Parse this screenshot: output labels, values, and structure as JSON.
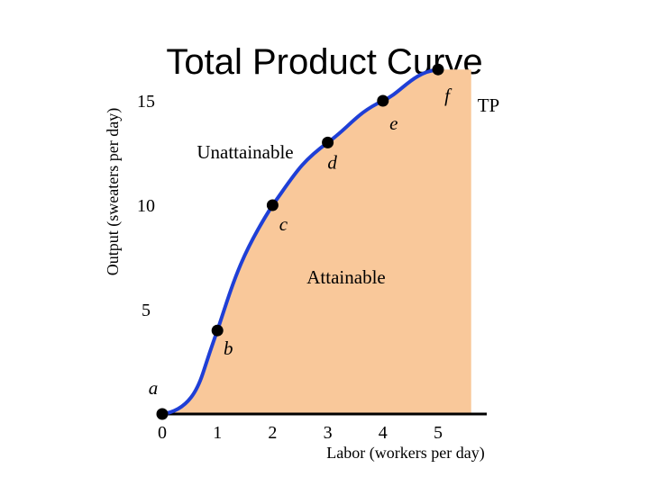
{
  "chart_data": {
    "type": "line",
    "title": "Total Product Curve",
    "xlabel": "Labor (workers per day)",
    "ylabel": "Output (sweaters per day)",
    "xlim": [
      0,
      5
    ],
    "ylim": [
      0,
      15
    ],
    "x_ticks": [
      "0",
      "1",
      "2",
      "3",
      "4",
      "5"
    ],
    "y_ticks": [
      "5",
      "10",
      "15"
    ],
    "series": [
      {
        "name": "TP",
        "points": [
          {
            "label": "a",
            "x": 0,
            "y": 0
          },
          {
            "label": "b",
            "x": 1,
            "y": 4
          },
          {
            "label": "c",
            "x": 2,
            "y": 10
          },
          {
            "label": "d",
            "x": 3,
            "y": 13
          },
          {
            "label": "e",
            "x": 4,
            "y": 15
          },
          {
            "label": "f",
            "x": 5,
            "y": 16.5
          }
        ]
      }
    ],
    "regions": {
      "attainable": "Attainable",
      "unattainable": "Unattainable"
    },
    "colors": {
      "fill": "#f9c89a",
      "line": "#1f3fd6",
      "points": "#000000"
    },
    "grid": false
  }
}
